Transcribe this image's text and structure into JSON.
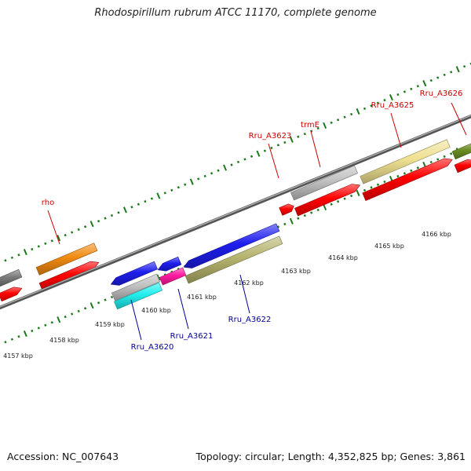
{
  "title": "Rhodospirillum rubrum ATCC 11170, complete genome",
  "footer": {
    "accession": "Accession: NC_007643",
    "info": "Topology: circular; Length: 4,352,825 bp; Genes: 3,861"
  },
  "colors": {
    "backbone": "#777777",
    "tick_green": "#1a7a1a",
    "upper_label": "#cc0000",
    "lower_label": "#000099"
  },
  "upper_labels": [
    "rho",
    "Rru_A3623",
    "trmE",
    "Rru_A3625",
    "Rru_A3626"
  ],
  "lower_labels": [
    "Rru_A3620",
    "Rru_A3621",
    "Rru_A3622"
  ],
  "kbp_labels": [
    "4157 kbp",
    "4158 kbp",
    "4159 kbp",
    "4160 kbp",
    "4161 kbp",
    "4162 kbp",
    "4163 kbp",
    "4164 kbp",
    "4165 kbp",
    "4166 kbp"
  ]
}
